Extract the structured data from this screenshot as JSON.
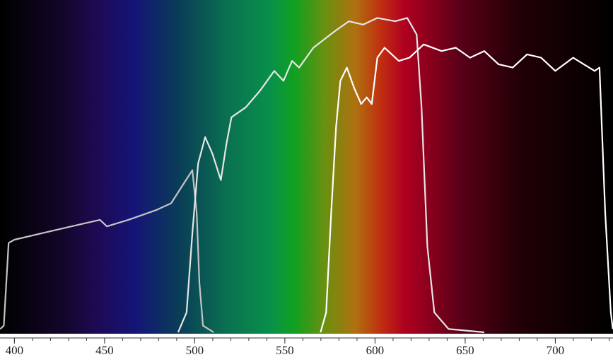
{
  "chart_data": {
    "type": "line",
    "xlim": [
      392,
      732
    ],
    "ylim": [
      0,
      1
    ],
    "xticks": [
      400,
      450,
      500,
      550,
      600,
      650,
      700
    ],
    "xminorticks": [
      400,
      410,
      420,
      430,
      440,
      450,
      460,
      470,
      480,
      490,
      500,
      510,
      520,
      530,
      540,
      550,
      560,
      570,
      580,
      590,
      600,
      610,
      620,
      630,
      640,
      650,
      660,
      670,
      680,
      690,
      700,
      710,
      720,
      730
    ],
    "series": [
      {
        "color": "#c4c4c4",
        "x": [
          392.1,
          394.1,
          396.8,
          400.0,
          415.8,
          431.6,
          447.4,
          451.3,
          463.2,
          479.0,
          486.9,
          492.8,
          498.7,
          501.1,
          502.6,
          504.6,
          510.5
        ],
        "values": [
          0.01,
          0.02,
          0.27,
          0.28,
          0.3,
          0.32,
          0.34,
          0.32,
          0.34,
          0.37,
          0.39,
          0.44,
          0.49,
          0.36,
          0.15,
          0.02,
          0.0
        ]
      },
      {
        "color": "#e6e6e6",
        "x": [
          490.8,
          495.5,
          498.7,
          501.9,
          505.8,
          509.8,
          514.5,
          517.6,
          520.4,
          528.3,
          536.2,
          544.1,
          549.2,
          554.0,
          557.9,
          565.8,
          577.7,
          585.5,
          593.4,
          601.3,
          611.2,
          617.9,
          623.1,
          625.8,
          629.0,
          632.9,
          640.8,
          660.6
        ],
        "values": [
          0.0,
          0.06,
          0.3,
          0.51,
          0.59,
          0.54,
          0.46,
          0.57,
          0.65,
          0.68,
          0.73,
          0.79,
          0.76,
          0.82,
          0.8,
          0.86,
          0.91,
          0.94,
          0.93,
          0.95,
          0.94,
          0.95,
          0.9,
          0.68,
          0.26,
          0.06,
          0.01,
          0.0
        ]
      },
      {
        "color": "#ffffff",
        "x": [
          569.8,
          572.9,
          575.7,
          578.4,
          580.8,
          584.4,
          588.3,
          592.3,
          595.4,
          598.2,
          601.3,
          605.3,
          613.2,
          619.1,
          627.0,
          636.9,
          644.8,
          652.7,
          660.6,
          668.5,
          676.4,
          684.3,
          692.1,
          700.0,
          709.9,
          715.8,
          721.8,
          724.5,
          727.7,
          730.8,
          731.9
        ],
        "values": [
          0.0,
          0.06,
          0.36,
          0.62,
          0.76,
          0.8,
          0.74,
          0.69,
          0.71,
          0.69,
          0.83,
          0.86,
          0.82,
          0.83,
          0.87,
          0.85,
          0.86,
          0.83,
          0.85,
          0.81,
          0.8,
          0.84,
          0.83,
          0.79,
          0.83,
          0.81,
          0.79,
          0.8,
          0.36,
          0.06,
          0.01
        ]
      }
    ]
  }
}
